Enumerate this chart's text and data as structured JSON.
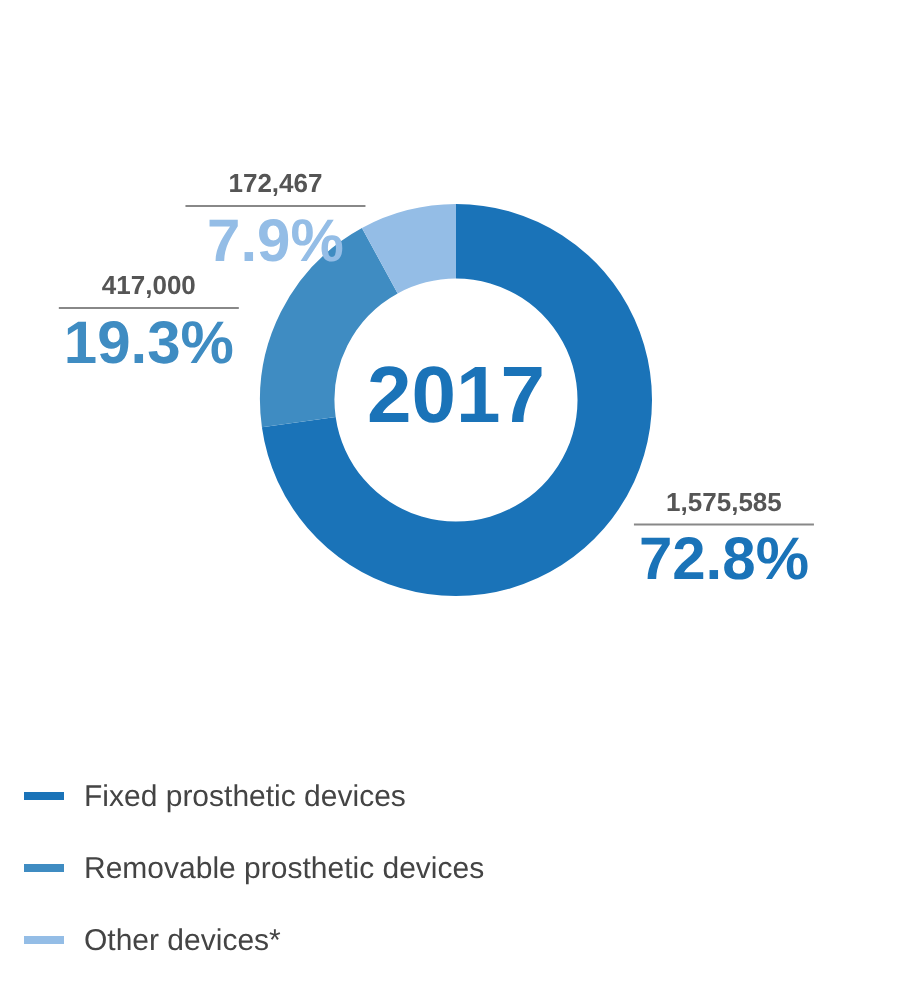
{
  "chart_data": {
    "type": "donut",
    "title": "2017",
    "categories": [
      "Fixed prosthetic devices",
      "Removable prosthetic devices",
      "Other devices*"
    ],
    "values": [
      1575585,
      417000,
      172467
    ],
    "colors": [
      "#1a73b8",
      "#3f8cc2",
      "#94bde6"
    ],
    "value_labels": [
      "1,575,585",
      "417,000",
      "172,467"
    ],
    "annotations": [
      {
        "text": "72.8%",
        "x": "Fixed prosthetic devices"
      },
      {
        "text": "19.3%",
        "x": "Removable prosthetic devices"
      },
      {
        "text": "7.9%",
        "x": "Other devices*"
      }
    ],
    "legend": "bottom"
  }
}
